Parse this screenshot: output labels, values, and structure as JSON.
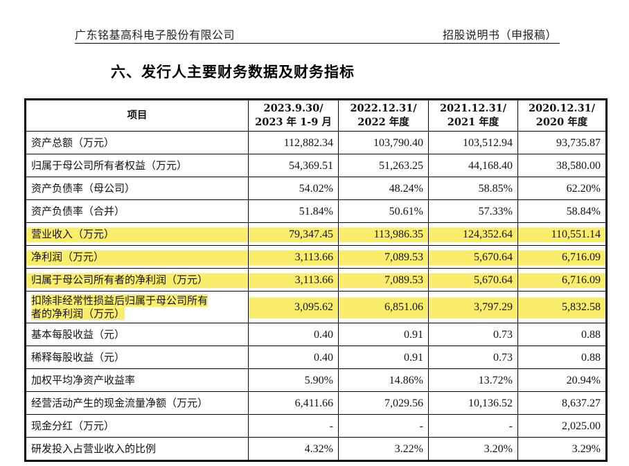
{
  "header": {
    "company": "广东铭基高科电子股份有限公司",
    "document_type": "招股说明书（申报稿）"
  },
  "section_title": "六、发行人主要财务数据及财务指标",
  "table": {
    "columns": [
      {
        "line1": "项目",
        "line2": ""
      },
      {
        "line1": "2023.9.30/",
        "line2": "2023 年 1-9 月"
      },
      {
        "line1": "2022.12.31/",
        "line2": "2022 年度"
      },
      {
        "line1": "2021.12.31/",
        "line2": "2021 年度"
      },
      {
        "line1": "2020.12.31/",
        "line2": "2020 年度"
      }
    ],
    "rows": [
      {
        "label": "资产总额（万元）",
        "values": [
          "112,882.34",
          "103,790.40",
          "103,512.94",
          "93,735.87"
        ],
        "highlighted": false
      },
      {
        "label": "归属于母公司所有者权益（万元）",
        "values": [
          "54,369.51",
          "51,263.25",
          "44,168.40",
          "38,580.00"
        ],
        "highlighted": false
      },
      {
        "label": "资产负债率（母公司）",
        "values": [
          "54.02%",
          "48.24%",
          "58.85%",
          "62.20%"
        ],
        "highlighted": false
      },
      {
        "label": "资产负债率（合并）",
        "values": [
          "51.84%",
          "50.61%",
          "57.33%",
          "58.84%"
        ],
        "highlighted": false
      },
      {
        "label": "营业收入（万元）",
        "values": [
          "79,347.45",
          "113,986.35",
          "124,352.64",
          "110,551.14"
        ],
        "highlighted": true
      },
      {
        "label": "净利润（万元）",
        "values": [
          "3,113.66",
          "7,089.53",
          "5,670.64",
          "6,716.09"
        ],
        "highlighted": true
      },
      {
        "label": "归属于母公司所有者的净利润（万元）",
        "values": [
          "3,113.66",
          "7,089.53",
          "5,670.64",
          "6,716.09"
        ],
        "highlighted": true
      },
      {
        "label_line1": "扣除非经常性损益后归属于母公司所有",
        "label_line2": "者的净利润（万元）",
        "values": [
          "3,095.62",
          "6,851.06",
          "3,797.29",
          "5,832.58"
        ],
        "highlighted": true
      },
      {
        "label": "基本每股收益（元）",
        "values": [
          "0.40",
          "0.91",
          "0.73",
          "0.88"
        ],
        "highlighted": false
      },
      {
        "label": "稀释每股收益（元）",
        "values": [
          "0.40",
          "0.91",
          "0.73",
          "0.88"
        ],
        "highlighted": false
      },
      {
        "label": "加权平均净资产收益率",
        "values": [
          "5.90%",
          "14.86%",
          "13.72%",
          "20.94%"
        ],
        "highlighted": false
      },
      {
        "label": "经营活动产生的现金流量净额（万元）",
        "values": [
          "6,411.66",
          "7,029.56",
          "10,136.52",
          "8,637.27"
        ],
        "highlighted": false
      },
      {
        "label": "现金分红（万元）",
        "values": [
          "-",
          "-",
          "-",
          "2,025.00"
        ],
        "highlighted": false
      },
      {
        "label": "研发投入占营业收入的比例",
        "values": [
          "4.32%",
          "3.22%",
          "3.20%",
          "3.29%"
        ],
        "highlighted": false
      }
    ]
  },
  "colors": {
    "highlight": "#fbed6c",
    "border": "#000000"
  }
}
